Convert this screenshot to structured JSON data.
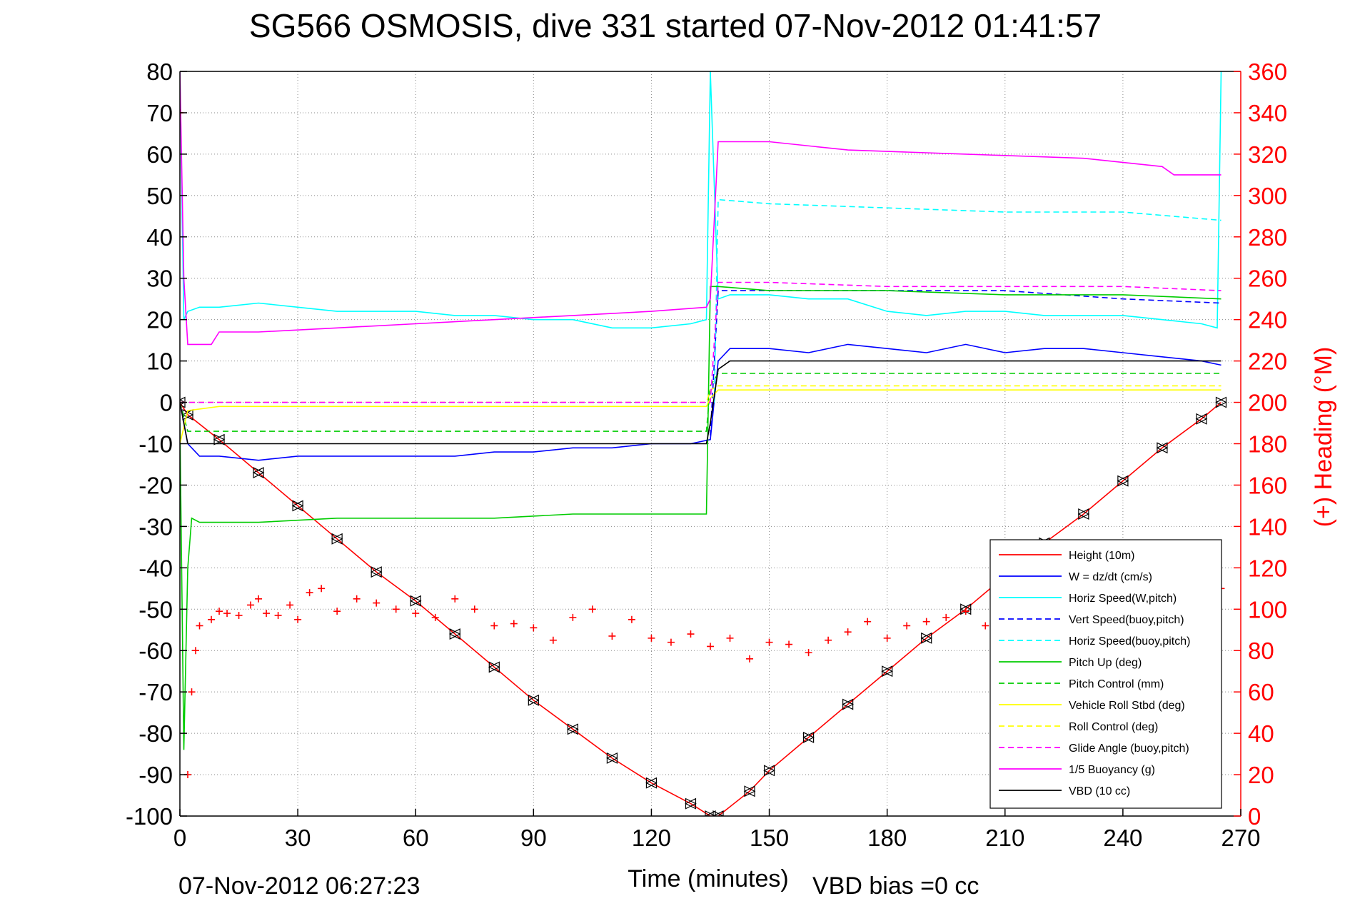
{
  "chart_data": {
    "type": "line",
    "title": "SG566 OSMOSIS, dive 331 started 07-Nov-2012 01:41:57",
    "xlabel": "Time (minutes)",
    "ylabel_right": "(+) Heading (°M)",
    "xlim": [
      0,
      270
    ],
    "ylim": [
      -100,
      80
    ],
    "ylim_right": [
      0,
      360
    ],
    "x_ticks": [
      "0",
      "30",
      "60",
      "90",
      "120",
      "150",
      "180",
      "210",
      "240",
      "270"
    ],
    "y_ticks": [
      "80",
      "70",
      "60",
      "50",
      "40",
      "30",
      "20",
      "10",
      "0",
      "-10",
      "-20",
      "-30",
      "-40",
      "-50",
      "-60",
      "-70",
      "-80",
      "-90",
      "-100"
    ],
    "y_ticks_right": [
      "360",
      "340",
      "320",
      "300",
      "280",
      "260",
      "240",
      "220",
      "200",
      "180",
      "160",
      "140",
      "120",
      "100",
      "80",
      "60",
      "40",
      "20",
      "0"
    ],
    "grid": true,
    "legend_position": "bottom-right",
    "footer_left": "07-Nov-2012 06:27:23",
    "footer_center": "VBD bias =0 cc",
    "series": [
      {
        "name": "Height (10m)",
        "color": "#ff0000",
        "style": "solid",
        "x": [
          0,
          2,
          10,
          20,
          30,
          40,
          50,
          60,
          70,
          80,
          90,
          100,
          110,
          120,
          130,
          135,
          137,
          145,
          150,
          160,
          170,
          180,
          190,
          200,
          210,
          220,
          230,
          240,
          250,
          260,
          265
        ],
        "y": [
          0,
          -3,
          -9,
          -17,
          -25,
          -33,
          -41,
          -48,
          -56,
          -64,
          -72,
          -79,
          -86,
          -92,
          -97,
          -100,
          -100,
          -94,
          -89,
          -81,
          -73,
          -65,
          -57,
          -50,
          -42,
          -34,
          -27,
          -19,
          -11,
          -4,
          0
        ]
      },
      {
        "name": "W = dz/dt (cm/s)",
        "color": "#0000ff",
        "style": "solid",
        "x": [
          0,
          2,
          5,
          10,
          20,
          30,
          40,
          50,
          60,
          70,
          80,
          90,
          100,
          110,
          120,
          130,
          135,
          137,
          140,
          150,
          160,
          170,
          180,
          190,
          200,
          210,
          220,
          230,
          240,
          250,
          260,
          265
        ],
        "y": [
          0,
          -10,
          -13,
          -13,
          -14,
          -13,
          -13,
          -13,
          -13,
          -13,
          -12,
          -12,
          -11,
          -11,
          -10,
          -10,
          -9,
          10,
          13,
          13,
          12,
          14,
          13,
          12,
          14,
          12,
          13,
          13,
          12,
          11,
          10,
          9
        ]
      },
      {
        "name": "Horiz Speed(W,pitch)",
        "color": "#00ffff",
        "style": "solid",
        "x": [
          0,
          1,
          2,
          5,
          10,
          20,
          30,
          40,
          50,
          60,
          70,
          80,
          90,
          100,
          110,
          120,
          130,
          134,
          135,
          137,
          140,
          150,
          160,
          170,
          180,
          190,
          200,
          210,
          220,
          230,
          240,
          250,
          260,
          264,
          265
        ],
        "y": [
          80,
          20,
          22,
          23,
          23,
          24,
          23,
          22,
          22,
          22,
          21,
          21,
          20,
          20,
          18,
          18,
          19,
          20,
          80,
          25,
          26,
          26,
          25,
          25,
          22,
          21,
          22,
          22,
          21,
          21,
          21,
          20,
          19,
          18,
          80
        ]
      },
      {
        "name": "Vert Speed(buoy,pitch)",
        "color": "#0000ff",
        "style": "dashed",
        "x": [
          135,
          137,
          150,
          180,
          210,
          240,
          265
        ],
        "y": [
          -8,
          27,
          27,
          27,
          27,
          25,
          24
        ]
      },
      {
        "name": "Horiz Speed(buoy,pitch)",
        "color": "#00ffff",
        "style": "dashed",
        "x": [
          136,
          137,
          150,
          180,
          210,
          240,
          265
        ],
        "y": [
          0,
          49,
          48,
          47,
          46,
          46,
          44
        ]
      },
      {
        "name": "Pitch Up (deg)",
        "color": "#00cc00",
        "style": "solid",
        "x": [
          0,
          1,
          2,
          3,
          5,
          10,
          20,
          40,
          60,
          80,
          100,
          120,
          134,
          135,
          137,
          150,
          180,
          210,
          240,
          265
        ],
        "y": [
          -5,
          -84,
          -40,
          -28,
          -29,
          -29,
          -29,
          -28,
          -28,
          -28,
          -27,
          -27,
          -27,
          28,
          28,
          27,
          27,
          26,
          26,
          25
        ]
      },
      {
        "name": "Pitch Control (mm)",
        "color": "#00cc00",
        "style": "dashed",
        "x": [
          0,
          2,
          10,
          60,
          120,
          134,
          135,
          137,
          180,
          265
        ],
        "y": [
          0,
          -7,
          -7,
          -7,
          -7,
          -7,
          4,
          7,
          7,
          7
        ]
      },
      {
        "name": "Vehicle Roll Stbd (deg)",
        "color": "#ffff00",
        "style": "solid",
        "x": [
          0,
          2,
          10,
          60,
          134,
          135,
          137,
          180,
          265
        ],
        "y": [
          -10,
          -2,
          -1,
          -1,
          -1,
          1,
          3,
          3,
          3
        ]
      },
      {
        "name": "Roll Control (deg)",
        "color": "#ffff00",
        "style": "dashed",
        "x": [
          0,
          2,
          10,
          134,
          135,
          137,
          265
        ],
        "y": [
          0,
          0,
          0,
          0,
          3,
          4,
          4
        ]
      },
      {
        "name": "Glide Angle (buoy,pitch)",
        "color": "#ff00ff",
        "style": "dashed",
        "x": [
          0,
          1,
          2,
          134,
          135,
          137,
          150,
          180,
          210,
          240,
          265
        ],
        "y": [
          0,
          0,
          0,
          0,
          0,
          29,
          29,
          28,
          28,
          28,
          27
        ]
      },
      {
        "name": "1/5 Buoyancy (g)",
        "color": "#ff00ff",
        "style": "solid",
        "x": [
          0,
          1,
          2,
          5,
          8,
          10,
          20,
          40,
          60,
          80,
          100,
          120,
          134,
          135,
          137,
          150,
          170,
          200,
          230,
          250,
          253,
          265
        ],
        "y": [
          80,
          30,
          14,
          14,
          14,
          17,
          17,
          18,
          19,
          20,
          21,
          22,
          23,
          25,
          63,
          63,
          61,
          60,
          59,
          57,
          55,
          55
        ]
      },
      {
        "name": "VBD (10 cc)",
        "color": "#000000",
        "style": "solid",
        "x": [
          0,
          1,
          2,
          10,
          60,
          120,
          134,
          135,
          137,
          140,
          200,
          265
        ],
        "y": [
          0,
          -5,
          -10,
          -10,
          -10,
          -10,
          -10,
          -5,
          8,
          10,
          10,
          10
        ]
      },
      {
        "name": "Heading",
        "color": "#ff0000",
        "style": "markers",
        "axis": "right",
        "x": [
          0,
          2,
          3,
          4,
          5,
          8,
          10,
          12,
          15,
          18,
          20,
          22,
          25,
          28,
          30,
          33,
          36,
          40,
          45,
          50,
          55,
          60,
          65,
          70,
          75,
          80,
          85,
          90,
          95,
          100,
          105,
          110,
          115,
          120,
          125,
          130,
          135,
          140,
          145,
          150,
          155,
          160,
          165,
          170,
          175,
          180,
          185,
          190,
          195,
          200,
          205,
          210,
          215,
          220,
          225,
          230,
          235,
          240,
          245,
          250,
          255,
          260,
          265
        ],
        "y": [
          340,
          20,
          60,
          80,
          92,
          95,
          99,
          98,
          97,
          102,
          105,
          98,
          97,
          102,
          95,
          108,
          110,
          99,
          105,
          103,
          100,
          98,
          96,
          105,
          100,
          92,
          93,
          91,
          85,
          96,
          100,
          87,
          95,
          86,
          84,
          88,
          82,
          86,
          76,
          84,
          83,
          79,
          85,
          89,
          94,
          86,
          92,
          94,
          96,
          99,
          92,
          85,
          98,
          92,
          94,
          95,
          97,
          99,
          100,
          104,
          105,
          108,
          110
        ]
      }
    ]
  }
}
